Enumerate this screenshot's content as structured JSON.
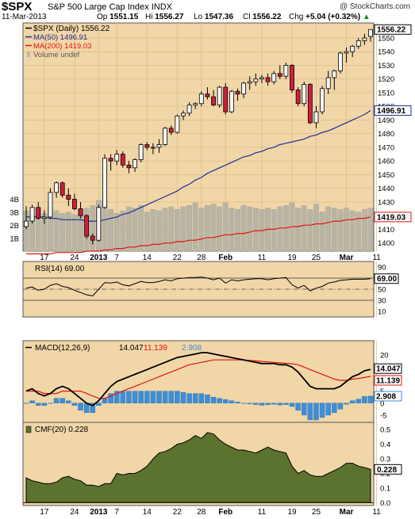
{
  "header": {
    "symbol": "$SPX",
    "name": "S&P 500 Large Cap Index",
    "exchange": "INDX",
    "source": "@ StockCharts.com",
    "date": "11-Mar-2013",
    "quote": {
      "op_label": "Op",
      "op": "1551.15",
      "hi_label": "Hi",
      "hi": "1556.27",
      "lo_label": "Lo",
      "lo": "1547.36",
      "cl_label": "Cl",
      "cl": "1556.22",
      "chg_label": "Chg",
      "chg": "+5.04 (+0.32%)",
      "chg_arrow": "▲"
    }
  },
  "colors": {
    "panel_bg": "#f1d6a8",
    "up": "#f7f7f7",
    "down": "#d21f3c",
    "ma50": "#1c2f96",
    "ma200": "#e1140e",
    "volume": "#b9b5a6",
    "cmf_fill": "#5c7330",
    "macd_hist": "#3c8fd8",
    "signal": "#e1140e",
    "chg_arrow": "#1f8a1f"
  },
  "chart_data": [
    {
      "type": "candlestick",
      "title": "$SPX (Daily) 1556.22",
      "legend": [
        {
          "name": "$SPX (Daily) 1556.22"
        },
        {
          "name": "MA(50) 1496.91"
        },
        {
          "name": "MA(200) 1419.03"
        },
        {
          "name": "Volume undef"
        }
      ],
      "y_ticks": [
        1400,
        1410,
        1420,
        1430,
        1440,
        1450,
        1460,
        1470,
        1480,
        1490,
        1500,
        1510,
        1520,
        1530,
        1540,
        1550
      ],
      "ylim": [
        1394,
        1561
      ],
      "volume_ticks": [
        "1B",
        "2B",
        "3B",
        "4B"
      ],
      "value_tags": [
        {
          "label": "1556.22",
          "value": 1556.22
        },
        {
          "label": "1496.91",
          "value": 1496.91
        },
        {
          "label": "1419.03",
          "value": 1419.03
        }
      ],
      "x_ticks": [
        {
          "label": "17",
          "index": 3
        },
        {
          "label": "24",
          "index": 8
        },
        {
          "label": "2013",
          "index": 12,
          "bold": true
        },
        {
          "label": "7",
          "index": 15
        },
        {
          "label": "14",
          "index": 20
        },
        {
          "label": "22",
          "index": 25
        },
        {
          "label": "28",
          "index": 29
        },
        {
          "label": "Feb",
          "index": 33,
          "bold": true
        },
        {
          "label": "11",
          "index": 39
        },
        {
          "label": "19",
          "index": 44
        },
        {
          "label": "25",
          "index": 48
        },
        {
          "label": "Mar",
          "index": 53,
          "bold": true
        },
        {
          "label": "11",
          "index": 58
        }
      ],
      "ohlc": [
        [
          1412,
          1427,
          1410,
          1416
        ],
        [
          1416,
          1428,
          1414,
          1426
        ],
        [
          1426,
          1430,
          1417,
          1418
        ],
        [
          1418,
          1424,
          1414,
          1419
        ],
        [
          1419,
          1440,
          1418,
          1437
        ],
        [
          1437,
          1445,
          1433,
          1444
        ],
        [
          1444,
          1445,
          1433,
          1435
        ],
        [
          1435,
          1440,
          1427,
          1432
        ],
        [
          1432,
          1436,
          1424,
          1425
        ],
        [
          1425,
          1430,
          1418,
          1420
        ],
        [
          1420,
          1421,
          1403,
          1405
        ],
        [
          1405,
          1407,
          1399,
          1402
        ],
        [
          1402,
          1428,
          1401,
          1426
        ],
        [
          1426,
          1465,
          1425,
          1462
        ],
        [
          1462,
          1465,
          1453,
          1460
        ],
        [
          1460,
          1468,
          1457,
          1465
        ],
        [
          1465,
          1467,
          1455,
          1457
        ],
        [
          1457,
          1460,
          1451,
          1455
        ],
        [
          1455,
          1462,
          1452,
          1461
        ],
        [
          1461,
          1473,
          1459,
          1472
        ],
        [
          1472,
          1474,
          1468,
          1470
        ],
        [
          1470,
          1473,
          1465,
          1470
        ],
        [
          1470,
          1476,
          1466,
          1472
        ],
        [
          1472,
          1485,
          1471,
          1484
        ],
        [
          1484,
          1486,
          1479,
          1481
        ],
        [
          1481,
          1494,
          1480,
          1493
        ],
        [
          1493,
          1497,
          1490,
          1495
        ],
        [
          1495,
          1503,
          1493,
          1501
        ],
        [
          1501,
          1503,
          1498,
          1502
        ],
        [
          1502,
          1511,
          1500,
          1509
        ],
        [
          1509,
          1514,
          1505,
          1507
        ],
        [
          1507,
          1512,
          1500,
          1501
        ],
        [
          1501,
          1515,
          1499,
          1514
        ],
        [
          1514,
          1517,
          1494,
          1496
        ],
        [
          1496,
          1512,
          1495,
          1511
        ],
        [
          1511,
          1513,
          1504,
          1509
        ],
        [
          1509,
          1518,
          1506,
          1517
        ],
        [
          1517,
          1522,
          1512,
          1518
        ],
        [
          1518,
          1524,
          1515,
          1520
        ],
        [
          1520,
          1523,
          1517,
          1521
        ],
        [
          1521,
          1524,
          1515,
          1518
        ],
        [
          1518,
          1526,
          1516,
          1524
        ],
        [
          1524,
          1530,
          1520,
          1522
        ],
        [
          1522,
          1532,
          1520,
          1530
        ],
        [
          1530,
          1531,
          1510,
          1512
        ],
        [
          1512,
          1514,
          1500,
          1502
        ],
        [
          1502,
          1518,
          1500,
          1516
        ],
        [
          1516,
          1517,
          1487,
          1488
        ],
        [
          1488,
          1500,
          1484,
          1496
        ],
        [
          1496,
          1515,
          1494,
          1513
        ],
        [
          1513,
          1526,
          1509,
          1521
        ],
        [
          1521,
          1527,
          1512,
          1526
        ],
        [
          1526,
          1540,
          1524,
          1539
        ],
        [
          1539,
          1543,
          1532,
          1540
        ],
        [
          1540,
          1545,
          1536,
          1544
        ],
        [
          1544,
          1550,
          1542,
          1548
        ],
        [
          1548,
          1553,
          1545,
          1550
        ],
        [
          1551.15,
          1556.27,
          1547.36,
          1556.22
        ]
      ],
      "ma50": [
        1419,
        1419,
        1419,
        1419,
        1418,
        1418,
        1417,
        1417,
        1417,
        1417,
        1416,
        1416,
        1416,
        1417,
        1418,
        1419,
        1421,
        1422,
        1424,
        1426,
        1428,
        1430,
        1432,
        1434,
        1436,
        1438,
        1441,
        1443,
        1446,
        1448,
        1451,
        1453,
        1455,
        1457,
        1459,
        1461,
        1463,
        1464,
        1466,
        1467,
        1469,
        1470,
        1472,
        1473,
        1474,
        1475,
        1476,
        1478,
        1479,
        1481,
        1482,
        1484,
        1486,
        1488,
        1490,
        1492,
        1494,
        1496.91
      ],
      "ma200": [
        1392,
        1392,
        1392,
        1392,
        1392,
        1393,
        1393,
        1393,
        1393,
        1393,
        1394,
        1394,
        1394,
        1395,
        1395,
        1396,
        1396,
        1397,
        1397,
        1398,
        1398,
        1399,
        1399,
        1400,
        1400,
        1401,
        1401,
        1402,
        1402,
        1403,
        1404,
        1404,
        1405,
        1406,
        1406,
        1407,
        1407,
        1408,
        1409,
        1409,
        1410,
        1410,
        1411,
        1411,
        1412,
        1412,
        1413,
        1413,
        1414,
        1414,
        1415,
        1416,
        1416,
        1417,
        1417,
        1418,
        1418,
        1419.03
      ],
      "volume_bn": [
        3.1,
        2.8,
        3.3,
        2.9,
        3.4,
        3.1,
        2.9,
        3.0,
        2.8,
        3.2,
        3.3,
        3.5,
        3.9,
        3.8,
        3.2,
        2.9,
        3.1,
        3.4,
        3.3,
        3.5,
        3.0,
        3.2,
        3.1,
        3.3,
        3.4,
        3.2,
        3.4,
        3.5,
        3.7,
        3.3,
        3.5,
        3.6,
        3.4,
        3.7,
        3.3,
        3.2,
        3.5,
        3.4,
        3.3,
        3.2,
        3.3,
        3.2,
        3.4,
        3.5,
        3.7,
        3.3,
        3.5,
        3.2,
        3.6,
        3.0,
        3.4,
        3.3,
        3.2,
        3.3,
        3.1,
        3.0,
        3.2,
        3.3
      ]
    },
    {
      "type": "line",
      "title": "RSI(14) 69.00",
      "y_ticks": [
        10,
        30,
        50,
        70,
        90
      ],
      "ylim": [
        0,
        100
      ],
      "tags": [
        "69.00"
      ],
      "values": [
        52,
        54,
        48,
        50,
        57,
        60,
        55,
        53,
        48,
        44,
        40,
        38,
        50,
        62,
        61,
        63,
        58,
        56,
        60,
        64,
        62,
        62,
        64,
        67,
        65,
        69,
        70,
        71,
        71,
        72,
        70,
        67,
        70,
        61,
        67,
        65,
        67,
        68,
        69,
        69,
        67,
        69,
        70,
        71,
        58,
        52,
        57,
        47,
        52,
        55,
        61,
        63,
        66,
        67,
        68,
        68,
        68,
        69
      ]
    },
    {
      "type": "line",
      "title": "MACD(12,26,9)",
      "legend": [
        {
          "name": "MACD(12,26,9)",
          "value": "14.047"
        },
        {
          "name": "signal",
          "value": "11.139"
        },
        {
          "name": "histogram",
          "value": "2.908"
        }
      ],
      "y_ticks": [
        -5,
        0,
        5,
        10,
        15,
        20
      ],
      "ylim": [
        -8,
        26
      ],
      "tags": [
        "14.047",
        "11.139",
        "2.908"
      ],
      "macd": [
        5,
        6,
        4,
        3,
        4,
        6,
        7,
        6,
        4,
        2,
        0,
        -1,
        1,
        4,
        7,
        9,
        10,
        11,
        12,
        13,
        14,
        15,
        16,
        17,
        18,
        19,
        19.5,
        20,
        20.5,
        21,
        21,
        20.5,
        20,
        19.5,
        19,
        18.5,
        18,
        17.5,
        17,
        16.5,
        16.5,
        16.5,
        16,
        16,
        15,
        13,
        10,
        7,
        6,
        6,
        6,
        6,
        7,
        9,
        11,
        12,
        13.5,
        14.047
      ],
      "signal": [
        5,
        5,
        5,
        4,
        4,
        4,
        5,
        5,
        5,
        5,
        4,
        3,
        2,
        2,
        3,
        4,
        5,
        6,
        7,
        8,
        9,
        10,
        11,
        12,
        13,
        14,
        15,
        16,
        16.5,
        17,
        17.5,
        18,
        18,
        18,
        18,
        18,
        18,
        17.8,
        17.6,
        17.4,
        17.2,
        17,
        16.8,
        16.6,
        16.4,
        16,
        15,
        14,
        13,
        12,
        11,
        10,
        9.5,
        9.5,
        10,
        10.3,
        10.7,
        11.139
      ],
      "histogram": [
        0,
        1,
        -1,
        -1,
        0,
        2,
        2,
        1,
        -1,
        -3,
        -4,
        -4,
        -1,
        2,
        4,
        5,
        5,
        5,
        5,
        5,
        5,
        5,
        5,
        5,
        5,
        5,
        4.5,
        4,
        4,
        4,
        3.5,
        2.5,
        2,
        1.5,
        1,
        0.5,
        0,
        -0.3,
        -0.6,
        -0.9,
        -0.7,
        -0.5,
        -0.8,
        -0.6,
        -1.4,
        -3,
        -5,
        -7,
        -7,
        -6,
        -5,
        -4,
        -2.5,
        -0.5,
        1,
        1.7,
        2.8,
        2.908
      ]
    },
    {
      "type": "area",
      "title": "CMF(20) 0.228",
      "y_ticks": [
        0.0,
        0.1,
        0.2,
        0.3,
        0.4,
        0.5
      ],
      "ylim": [
        -0.02,
        0.55
      ],
      "tags": [
        "0.228"
      ],
      "values": [
        0.17,
        0.15,
        0.14,
        0.13,
        0.13,
        0.14,
        0.17,
        0.18,
        0.16,
        0.15,
        0.12,
        0.12,
        0.11,
        0.13,
        0.13,
        0.2,
        0.19,
        0.2,
        0.2,
        0.22,
        0.25,
        0.3,
        0.34,
        0.35,
        0.37,
        0.4,
        0.41,
        0.43,
        0.46,
        0.44,
        0.48,
        0.47,
        0.43,
        0.4,
        0.38,
        0.36,
        0.36,
        0.35,
        0.34,
        0.36,
        0.38,
        0.36,
        0.35,
        0.34,
        0.25,
        0.2,
        0.22,
        0.19,
        0.18,
        0.18,
        0.2,
        0.22,
        0.24,
        0.27,
        0.27,
        0.25,
        0.24,
        0.228
      ]
    }
  ]
}
